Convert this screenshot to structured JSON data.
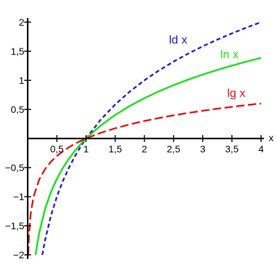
{
  "chart_data": {
    "type": "line",
    "title": "",
    "xlabel": "x",
    "ylabel": "",
    "xlim": [
      0,
      4
    ],
    "ylim": [
      -2,
      2
    ],
    "grid": false,
    "x_ticks": [
      {
        "value": 0.5,
        "label": "0,5"
      },
      {
        "value": 1,
        "label": "1"
      },
      {
        "value": 1.5,
        "label": "1,5"
      },
      {
        "value": 2,
        "label": "2"
      },
      {
        "value": 2.5,
        "label": "2,5"
      },
      {
        "value": 3,
        "label": "3"
      },
      {
        "value": 3.5,
        "label": "3,5"
      },
      {
        "value": 4,
        "label": "4"
      }
    ],
    "y_ticks": [
      {
        "value": 2,
        "label": "2"
      },
      {
        "value": 1.5,
        "label": "1,5"
      },
      {
        "value": 1,
        "label": "1"
      },
      {
        "value": 0.5,
        "label": "0,5"
      },
      {
        "value": -0.5,
        "label": "-0,5"
      },
      {
        "value": -1,
        "label": "-1"
      },
      {
        "value": -1.5,
        "label": "-1,5"
      },
      {
        "value": -2,
        "label": "-2"
      }
    ],
    "series": [
      {
        "name": "ld x",
        "color": "#1a1acc",
        "style": "dashed",
        "x": [
          0.25,
          0.3,
          0.4,
          0.5,
          0.6,
          0.7,
          0.8,
          0.9,
          1,
          1.25,
          1.5,
          1.75,
          2,
          2.25,
          2.5,
          2.75,
          3,
          3.25,
          3.5,
          3.75,
          4
        ],
        "y": [
          -2,
          -1.737,
          -1.322,
          -1,
          -0.737,
          -0.515,
          -0.322,
          -0.152,
          0,
          0.322,
          0.585,
          0.807,
          1,
          1.17,
          1.322,
          1.459,
          1.585,
          1.7,
          1.807,
          1.907,
          2
        ]
      },
      {
        "name": "ln x",
        "color": "#22dd22",
        "style": "solid",
        "x": [
          0.135,
          0.15,
          0.2,
          0.3,
          0.4,
          0.5,
          0.6,
          0.7,
          0.8,
          0.9,
          1,
          1.25,
          1.5,
          1.75,
          2,
          2.25,
          2.5,
          2.75,
          3,
          3.25,
          3.5,
          3.75,
          4
        ],
        "y": [
          -2,
          -1.897,
          -1.609,
          -1.204,
          -0.916,
          -0.693,
          -0.511,
          -0.357,
          -0.223,
          -0.105,
          0,
          0.223,
          0.405,
          0.56,
          0.693,
          0.811,
          0.916,
          1.012,
          1.099,
          1.179,
          1.253,
          1.322,
          1.386
        ]
      },
      {
        "name": "lg x",
        "color": "#dd1111",
        "style": "dashed",
        "x": [
          0.01,
          0.02,
          0.05,
          0.1,
          0.2,
          0.3,
          0.4,
          0.5,
          0.6,
          0.7,
          0.8,
          0.9,
          1,
          1.25,
          1.5,
          1.75,
          2,
          2.25,
          2.5,
          2.75,
          3,
          3.25,
          3.5,
          3.75,
          4
        ],
        "y": [
          -2,
          -1.699,
          -1.301,
          -1,
          -0.699,
          -0.523,
          -0.398,
          -0.301,
          -0.222,
          -0.155,
          -0.097,
          -0.046,
          0,
          0.097,
          0.176,
          0.243,
          0.301,
          0.352,
          0.398,
          0.439,
          0.477,
          0.512,
          0.544,
          0.574,
          0.602
        ]
      }
    ]
  }
}
